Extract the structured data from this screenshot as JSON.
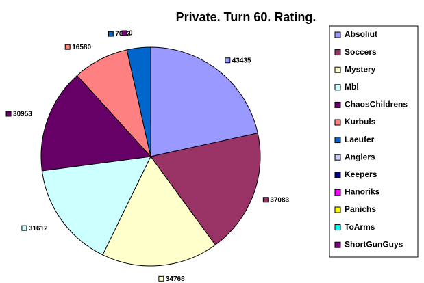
{
  "chart_data": {
    "type": "pie",
    "title": "Private. Turn 60. Rating.",
    "categories": [
      "Absoliut",
      "Soccers",
      "Mystery",
      "Mbl",
      "ChaosChildrens",
      "Kurbuls",
      "Laeufer",
      "Anglers",
      "Keepers",
      "Hanoriks",
      "Panichs",
      "ToArms",
      "ShortGunGuys"
    ],
    "values": [
      43435,
      37083,
      34768,
      31612,
      30953,
      16580,
      7032,
      null,
      null,
      null,
      null,
      null,
      0
    ],
    "colors": [
      "#9999ff",
      "#993366",
      "#ffffcc",
      "#ccffff",
      "#660066",
      "#ff8080",
      "#0066cc",
      "#ccccff",
      "#000080",
      "#ff00ff",
      "#ffff00",
      "#00ffff",
      "#800080"
    ],
    "legend": "right"
  }
}
